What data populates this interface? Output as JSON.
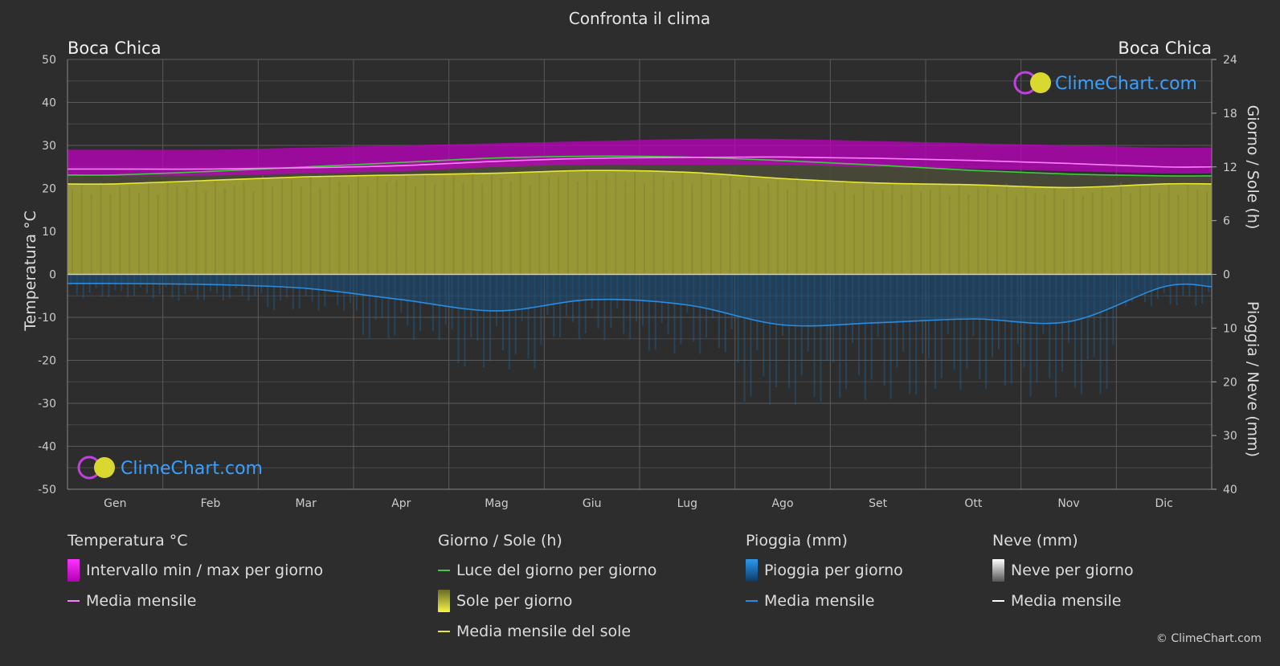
{
  "title": "Confronta il clima",
  "location_left": "Boca Chica",
  "location_right": "Boca Chica",
  "axis_left_label": "Temperatura °C",
  "axis_right_top_label": "Giorno / Sole (h)",
  "axis_right_bottom_label": "Pioggia / Neve (mm)",
  "watermark": "ClimeChart.com",
  "copyright": "© ClimeChart.com",
  "colors": {
    "background": "#2d2d2d",
    "temp_range": "#d000d0",
    "temp_mean": "#ff80ff",
    "daylight": "#3ecb3e",
    "sunshine_fill": "#9c9c36",
    "sunshine_mean": "#e8e83a",
    "rain": "#1e8fdc",
    "rain_mean": "#2a8de0",
    "snow_mean": "#ffffff",
    "grid": "#555555",
    "axis_text": "#cccccc"
  },
  "legend": {
    "temperature": {
      "title": "Temperatura °C",
      "range_label": "Intervallo min / max per giorno",
      "mean_label": "Media mensile"
    },
    "sun": {
      "title": "Giorno / Sole (h)",
      "daylight_label": "Luce del giorno per giorno",
      "sunshine_label": "Sole per giorno",
      "sunshine_mean_label": "Media mensile del sole"
    },
    "rain": {
      "title": "Pioggia (mm)",
      "rain_label": "Pioggia per giorno",
      "mean_label": "Media mensile"
    },
    "snow": {
      "title": "Neve (mm)",
      "snow_label": "Neve per giorno",
      "mean_label": "Media mensile"
    }
  },
  "chart_data": {
    "type": "area",
    "title": "Confronta il clima",
    "categories": [
      "Gen",
      "Feb",
      "Mar",
      "Apr",
      "Mag",
      "Giu",
      "Lug",
      "Ago",
      "Set",
      "Ott",
      "Nov",
      "Dic"
    ],
    "temperature_axis": {
      "label": "Temperatura °C",
      "range": [
        -50,
        50
      ],
      "ticks": [
        50,
        40,
        30,
        20,
        10,
        0,
        -10,
        -20,
        -30,
        -40,
        -50
      ]
    },
    "sun_axis": {
      "label": "Giorno / Sole (h)",
      "range": [
        0,
        24
      ],
      "ticks": [
        24,
        18,
        12,
        6,
        0
      ]
    },
    "precip_axis": {
      "label": "Pioggia / Neve (mm)",
      "range": [
        0,
        40
      ],
      "ticks": [
        0,
        10,
        20,
        30,
        40
      ]
    },
    "grid": true,
    "series": [
      {
        "name": "Intervallo min / max per giorno",
        "axis": "temperature",
        "min": [
          23,
          23,
          23.5,
          24,
          25,
          25.5,
          25.5,
          25.5,
          25,
          24.5,
          24,
          23.5
        ],
        "max": [
          29,
          29,
          29.5,
          30,
          30.5,
          31,
          31.5,
          31.5,
          31,
          30.5,
          30,
          29.5
        ]
      },
      {
        "name": "Media mensile",
        "axis": "temperature",
        "values": [
          24.5,
          24.5,
          24.8,
          25.3,
          26.3,
          27,
          27.2,
          27.3,
          27,
          26.5,
          25.8,
          25
        ]
      },
      {
        "name": "Luce del giorno per giorno",
        "axis": "sun",
        "values": [
          11.1,
          11.5,
          12,
          12.5,
          13,
          13.2,
          13.1,
          12.7,
          12.2,
          11.6,
          11.2,
          11
        ]
      },
      {
        "name": "Sole per giorno",
        "axis": "sun",
        "values": [
          10.1,
          10.5,
          10.9,
          11.1,
          11.3,
          11.6,
          11.4,
          10.7,
          10.2,
          10,
          9.7,
          10.1
        ]
      },
      {
        "name": "Media mensile del sole",
        "axis": "sun",
        "values": [
          10.1,
          10.5,
          10.9,
          11.1,
          11.3,
          11.6,
          11.4,
          10.7,
          10.2,
          10,
          9.7,
          10.1
        ]
      },
      {
        "name": "Pioggia per giorno",
        "axis": "precip",
        "values": [
          1.7,
          1.9,
          2.6,
          4.7,
          6.8,
          4.7,
          5.7,
          9.4,
          9,
          8.3,
          8.8,
          2.3
        ]
      },
      {
        "name": "Media mensile",
        "axis": "precip",
        "values": [
          1.7,
          1.9,
          2.6,
          4.7,
          6.8,
          4.7,
          5.7,
          9.4,
          9,
          8.3,
          8.8,
          2.3
        ]
      }
    ]
  }
}
